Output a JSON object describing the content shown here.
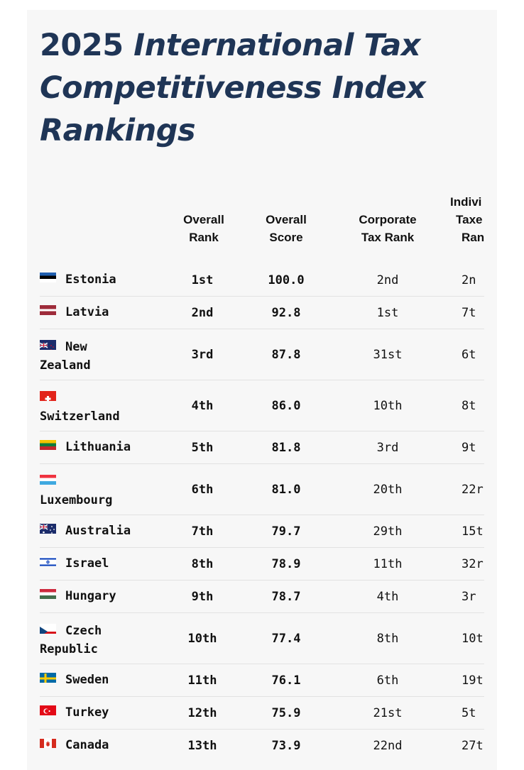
{
  "title": {
    "line1_plain": "2025 ",
    "line1_italic": "International Tax",
    "line2": "Competitiveness Index",
    "line3": "Rankings"
  },
  "columns": {
    "overall_rank": [
      "Overall",
      "Rank"
    ],
    "overall_score": [
      "Overall",
      "Score"
    ],
    "corporate_tax_rank": [
      "Corporate",
      "Tax Rank"
    ],
    "individual_taxes_rank": [
      "Indivi",
      "Taxe",
      "Ran"
    ]
  },
  "rows": [
    {
      "country_line1": "Estonia",
      "country_line2": "",
      "flag": "estonia-flag",
      "rank": "1st",
      "score": "100.0",
      "corporate": "2nd",
      "individual": "2n"
    },
    {
      "country_line1": "Latvia",
      "country_line2": "",
      "flag": "latvia-flag",
      "rank": "2nd",
      "score": "92.8",
      "corporate": "1st",
      "individual": "7t"
    },
    {
      "country_line1": "New",
      "country_line2": "Zealand",
      "flag": "new-zealand-flag",
      "rank": "3rd",
      "score": "87.8",
      "corporate": "31st",
      "individual": "6t"
    },
    {
      "country_line1": "",
      "country_line2": "Switzerland",
      "flag": "switzerland-flag",
      "rank": "4th",
      "score": "86.0",
      "corporate": "10th",
      "individual": "8t"
    },
    {
      "country_line1": "Lithuania",
      "country_line2": "",
      "flag": "lithuania-flag",
      "rank": "5th",
      "score": "81.8",
      "corporate": "3rd",
      "individual": "9t"
    },
    {
      "country_line1": "",
      "country_line2": "Luxembourg",
      "flag": "luxembourg-flag",
      "rank": "6th",
      "score": "81.0",
      "corporate": "20th",
      "individual": "22r"
    },
    {
      "country_line1": "Australia",
      "country_line2": "",
      "flag": "australia-flag",
      "rank": "7th",
      "score": "79.7",
      "corporate": "29th",
      "individual": "15t"
    },
    {
      "country_line1": "Israel",
      "country_line2": "",
      "flag": "israel-flag",
      "rank": "8th",
      "score": "78.9",
      "corporate": "11th",
      "individual": "32r"
    },
    {
      "country_line1": "Hungary",
      "country_line2": "",
      "flag": "hungary-flag",
      "rank": "9th",
      "score": "78.7",
      "corporate": "4th",
      "individual": "3r"
    },
    {
      "country_line1": "Czech",
      "country_line2": "Republic",
      "flag": "czech-republic-flag",
      "rank": "10th",
      "score": "77.4",
      "corporate": "8th",
      "individual": "10t"
    },
    {
      "country_line1": "Sweden",
      "country_line2": "",
      "flag": "sweden-flag",
      "rank": "11th",
      "score": "76.1",
      "corporate": "6th",
      "individual": "19t"
    },
    {
      "country_line1": "Turkey",
      "country_line2": "",
      "flag": "turkey-flag",
      "rank": "12th",
      "score": "75.9",
      "corporate": "21st",
      "individual": "5t"
    },
    {
      "country_line1": "Canada",
      "country_line2": "",
      "flag": "canada-flag",
      "rank": "13th",
      "score": "73.9",
      "corporate": "22nd",
      "individual": "27t"
    }
  ]
}
